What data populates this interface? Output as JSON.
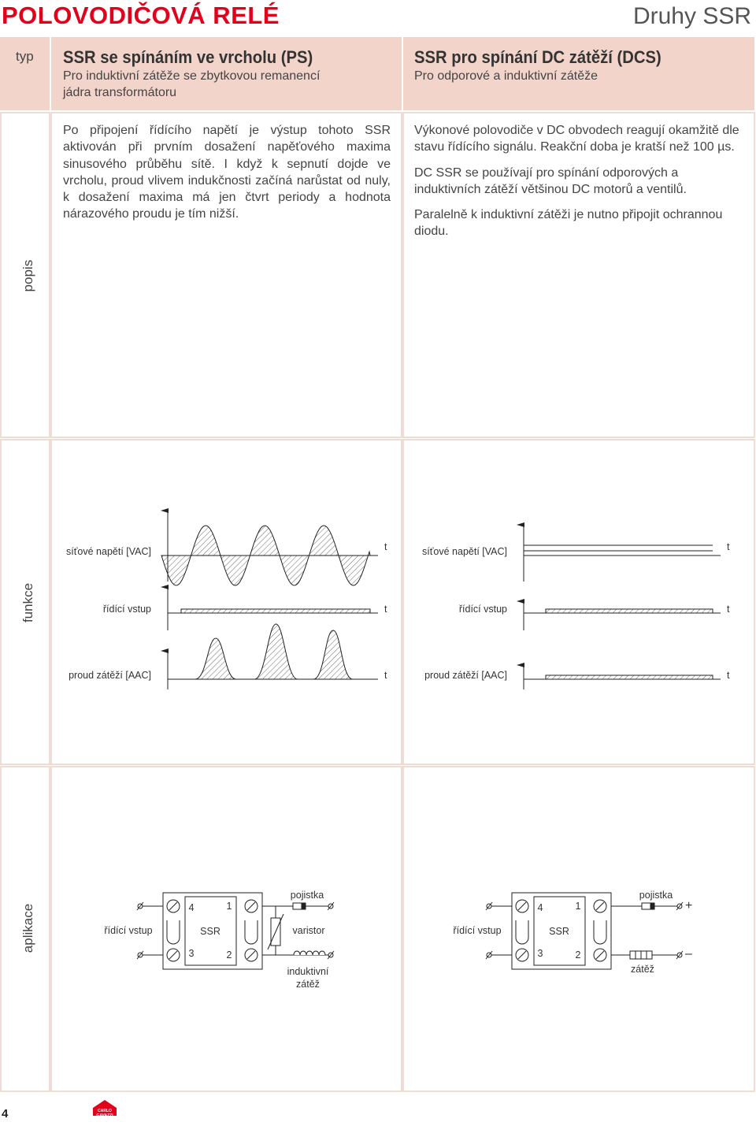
{
  "header": {
    "title": "POLOVODIČOVÁ RELÉ",
    "section": "Druhy SSR"
  },
  "row_labels": {
    "type": "typ",
    "description": "popis",
    "function": "funkce",
    "application": "aplikace"
  },
  "columns": [
    {
      "title": "SSR se spínáním ve vrcholu (PS)",
      "subtitle": "Pro induktivní zátěže se zbytkovou remanencí jádra transformátoru",
      "description": [
        "Po připojení řídícího napětí je výstup tohoto SSR aktivován při prvním dosažení napěťového maxima sinusového průběhu sítě. I když k sepnutí dojde ve vrcholu, proud vlivem indukčnosti začíná narůstat od nuly, k dosažení maxima má jen čtvrt periody a hodnota nárazového proudu je tím nižší."
      ],
      "function": {
        "signals": [
          {
            "label": "síťové napětí [VAC]",
            "axis": "t"
          },
          {
            "label": "řídící vstup",
            "axis": "t"
          },
          {
            "label": "proud zátěží [AAC]",
            "axis": "t"
          }
        ]
      },
      "application": {
        "input": "řídící vstup",
        "ssr": {
          "name": "SSR",
          "terminals": [
            "4",
            "1",
            "3",
            "2"
          ]
        },
        "fuse": "pojistka",
        "varistor": "varistor",
        "load": "induktivní zátěž"
      }
    },
    {
      "title": "SSR pro spínání DC zátěží (DCS)",
      "subtitle": "Pro odporové a induktivní zátěže",
      "description": [
        "Výkonové polovodiče v DC obvodech reagují okamžitě dle stavu řídícího signálu. Reakční doba je kratší než 100 µs.",
        "DC SSR se používají pro spínání  odporových a induktivních zátěží  většinou DC motorů a ventilů.",
        "Paralelně k induktivní zátěži je nutno připojit ochrannou diodu."
      ],
      "function": {
        "signals": [
          {
            "label": "síťové napětí [VAC]",
            "axis": "t"
          },
          {
            "label": "řídící vstup",
            "axis": "t"
          },
          {
            "label": "proud zátěží [AAC]",
            "axis": "t"
          }
        ]
      },
      "application": {
        "input": "řídící vstup",
        "ssr": {
          "name": "SSR",
          "terminals": [
            "4",
            "1",
            "3",
            "2"
          ]
        },
        "fuse": "pojistka",
        "plus": "+",
        "minus": "–",
        "load": "zátěž"
      }
    }
  ],
  "footer": {
    "page": "4",
    "brand": "CARLO GAVAZZI"
  }
}
